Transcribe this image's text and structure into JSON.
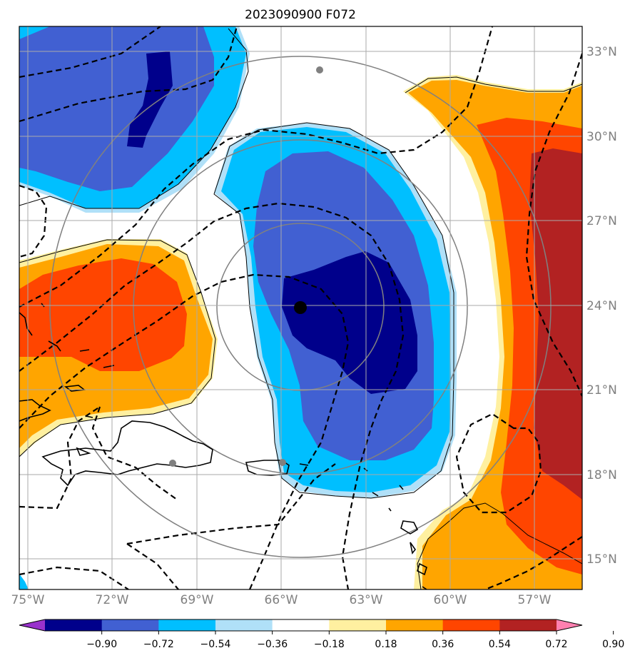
{
  "title": "2023090900 F072",
  "map": {
    "lon_labels": [
      "75°W",
      "72°W",
      "69°W",
      "66°W",
      "63°W",
      "60°W",
      "57°W"
    ],
    "lat_labels": [
      "33°N",
      "30°N",
      "27°N",
      "24°N",
      "21°N",
      "18°N",
      "15°N"
    ],
    "storm_center": {
      "lon": -65.7,
      "lat": 23.9
    },
    "range_rings_deg": [
      3,
      6,
      9
    ]
  },
  "colorbar": {
    "ticks": [
      "−0.90",
      "−0.72",
      "−0.54",
      "−0.36",
      "−0.18",
      "0.18",
      "0.36",
      "0.54",
      "0.72",
      "0.90"
    ],
    "colors": [
      "#9932cc",
      "#00008b",
      "#4160d2",
      "#00bfff",
      "#b0e0f8",
      "#ffffff",
      "#fff0a0",
      "#ffa500",
      "#ff4500",
      "#b22222",
      "#ff80b0"
    ]
  },
  "colors": {
    "neg_strong": "#00008b",
    "neg_mid": "#4160d2",
    "neg_weak": "#00bfff",
    "neg_faint": "#b0e0f8",
    "pos_faint": "#fff0a0",
    "pos_weak": "#ffa500",
    "pos_mid": "#ff4500",
    "pos_strong": "#b22222",
    "grid": "#aaaaaa",
    "rings": "#808080"
  }
}
